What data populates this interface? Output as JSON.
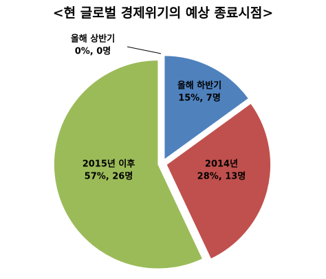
{
  "chart_data": {
    "type": "pie",
    "title": "<현 글로벌 경제위기의 예상 종료시점>",
    "categories": [
      "올해 상반기",
      "올해 하반기",
      "2014년",
      "2015년 이후"
    ],
    "values": [
      0,
      15,
      28,
      57
    ],
    "counts": [
      0,
      7,
      13,
      26
    ],
    "value_labels": [
      "0%, 0명",
      "15%, 7명",
      "28%, 13명",
      "57%, 26명"
    ],
    "colors": [
      "#4f81bd",
      "#4f81bd",
      "#c0504d",
      "#9bbb59"
    ]
  }
}
